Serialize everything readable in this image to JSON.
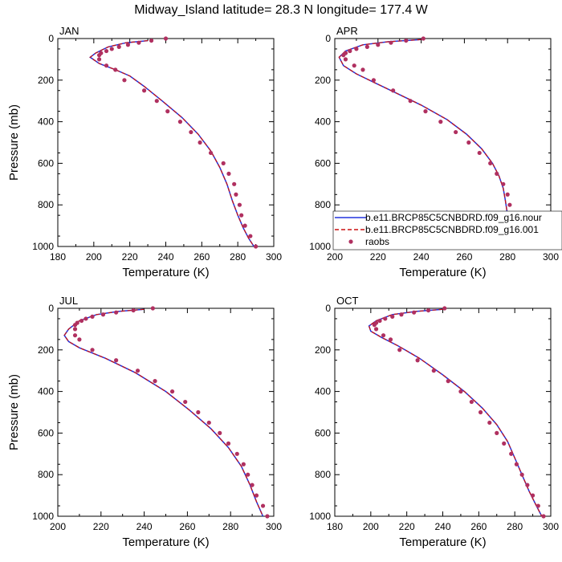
{
  "title": "Midway_Island  latitude= 28.3 N longitude= 177.4 W",
  "legend_entries": [
    {
      "label": "b.e11.BRCP85C5CNBDRD.f09_g16.nour",
      "style": "solid",
      "color": "#2233dd"
    },
    {
      "label": "b.e11.BRCP85C5CNBDRD.f09_g16.001",
      "style": "dashed",
      "color": "#cc1111"
    },
    {
      "label": "raobs",
      "style": "marker",
      "color": "#b03060"
    }
  ],
  "chart_data": [
    {
      "type": "line",
      "panel": "JAN",
      "xlabel": "Temperature (K)",
      "ylabel": "Pressure (mb)",
      "xlim": [
        180,
        300
      ],
      "xticks": [
        180,
        200,
        220,
        240,
        260,
        280,
        300
      ],
      "ylim": [
        1000,
        0
      ],
      "yticks": [
        0,
        200,
        400,
        600,
        800,
        1000
      ],
      "series": [
        {
          "name": "b.e11.BRCP85C5CNBDRD.f09_g16.nour",
          "x": [
            230,
            218,
            208,
            201,
            198,
            203,
            212,
            220,
            228,
            238,
            249,
            258,
            265,
            270,
            274,
            277,
            280,
            283,
            286,
            289
          ],
          "y": [
            10,
            20,
            40,
            70,
            90,
            120,
            150,
            180,
            230,
            300,
            380,
            460,
            540,
            620,
            700,
            780,
            850,
            910,
            960,
            1000
          ]
        },
        {
          "name": "b.e11.BRCP85C5CNBDRD.f09_g16.001",
          "x": [
            230,
            218,
            208,
            201,
            198,
            203,
            212,
            220,
            228,
            238,
            249,
            258,
            265,
            270,
            274,
            277,
            280,
            283,
            286,
            289
          ],
          "y": [
            10,
            20,
            40,
            70,
            90,
            120,
            150,
            180,
            230,
            300,
            380,
            460,
            540,
            620,
            700,
            780,
            850,
            910,
            960,
            1000
          ]
        },
        {
          "name": "raobs",
          "x": [
            240,
            232,
            225,
            219,
            214,
            210,
            207,
            204,
            203,
            203,
            207,
            212,
            217,
            228,
            235,
            241,
            248,
            254,
            259,
            265,
            272,
            275,
            278,
            279,
            281,
            282,
            284,
            287,
            290
          ],
          "y": [
            0,
            10,
            20,
            30,
            40,
            50,
            60,
            70,
            80,
            100,
            130,
            150,
            200,
            250,
            300,
            350,
            400,
            450,
            500,
            550,
            600,
            650,
            700,
            750,
            800,
            850,
            900,
            950,
            1000
          ]
        }
      ]
    },
    {
      "type": "line",
      "panel": "APR",
      "xlabel": "Temperature (K)",
      "ylabel": "",
      "xlim": [
        200,
        300
      ],
      "xticks": [
        200,
        220,
        240,
        260,
        280,
        300
      ],
      "ylim": [
        1000,
        0
      ],
      "yticks": [
        0,
        200,
        400,
        600,
        800,
        1000
      ],
      "series": [
        {
          "name": "b.e11.BRCP85C5CNBDRD.f09_g16.nour",
          "x": [
            240,
            225,
            213,
            205,
            202,
            204,
            210,
            218,
            228,
            240,
            252,
            261,
            268,
            273,
            276,
            278,
            279,
            280,
            283,
            286,
            289
          ],
          "y": [
            5,
            15,
            30,
            60,
            90,
            130,
            170,
            210,
            260,
            320,
            390,
            460,
            530,
            600,
            660,
            720,
            780,
            850,
            910,
            960,
            1000
          ]
        },
        {
          "name": "b.e11.BRCP85C5CNBDRD.f09_g16.001",
          "x": [
            240,
            225,
            213,
            205,
            202,
            204,
            210,
            218,
            228,
            240,
            252,
            261,
            268,
            273,
            276,
            278,
            279,
            280,
            283,
            286,
            289
          ],
          "y": [
            5,
            15,
            30,
            60,
            90,
            130,
            170,
            210,
            260,
            320,
            390,
            460,
            530,
            600,
            660,
            720,
            780,
            850,
            910,
            960,
            1000
          ]
        },
        {
          "name": "raobs",
          "x": [
            241,
            233,
            226,
            220,
            215,
            210,
            207,
            205,
            204,
            205,
            209,
            213,
            218,
            227,
            235,
            242,
            249,
            256,
            262,
            267,
            272,
            275,
            278,
            280,
            281,
            282,
            283,
            286,
            290
          ],
          "y": [
            0,
            10,
            20,
            30,
            40,
            50,
            60,
            70,
            80,
            100,
            130,
            150,
            200,
            250,
            300,
            350,
            400,
            450,
            500,
            550,
            600,
            650,
            700,
            750,
            800,
            850,
            900,
            950,
            1000
          ]
        }
      ]
    },
    {
      "type": "line",
      "panel": "JUL",
      "xlabel": "Temperature (K)",
      "ylabel": "Pressure (mb)",
      "xlim": [
        200,
        300
      ],
      "xticks": [
        200,
        220,
        240,
        260,
        280,
        300
      ],
      "ylim": [
        1000,
        0
      ],
      "yticks": [
        0,
        200,
        400,
        600,
        800,
        1000
      ],
      "series": [
        {
          "name": "b.e11.BRCP85C5CNBDRD.f09_g16.nour",
          "x": [
            240,
            228,
            218,
            210,
            205,
            203,
            205,
            210,
            222,
            236,
            250,
            261,
            271,
            279,
            285,
            289,
            292,
            295
          ],
          "y": [
            5,
            15,
            30,
            60,
            100,
            130,
            160,
            190,
            240,
            310,
            400,
            490,
            580,
            670,
            760,
            850,
            930,
            1000
          ]
        },
        {
          "name": "b.e11.BRCP85C5CNBDRD.f09_g16.001",
          "x": [
            240,
            228,
            218,
            210,
            205,
            203,
            205,
            210,
            222,
            236,
            250,
            261,
            271,
            279,
            285,
            289,
            292,
            295
          ],
          "y": [
            5,
            15,
            30,
            60,
            100,
            130,
            160,
            190,
            240,
            310,
            400,
            490,
            580,
            670,
            760,
            850,
            930,
            1000
          ]
        },
        {
          "name": "raobs",
          "x": [
            244,
            235,
            227,
            221,
            216,
            213,
            211,
            209,
            208,
            208,
            208,
            210,
            216,
            227,
            237,
            245,
            253,
            259,
            265,
            270,
            275,
            279,
            283,
            286,
            288,
            290,
            292,
            295,
            297
          ],
          "y": [
            0,
            10,
            20,
            30,
            40,
            50,
            60,
            70,
            80,
            100,
            130,
            150,
            200,
            250,
            300,
            350,
            400,
            450,
            500,
            550,
            600,
            650,
            700,
            750,
            800,
            850,
            900,
            950,
            1000
          ]
        }
      ]
    },
    {
      "type": "line",
      "panel": "OCT",
      "xlabel": "Temperature (K)",
      "ylabel": "",
      "xlim": [
        180,
        300
      ],
      "xticks": [
        180,
        200,
        220,
        240,
        260,
        280,
        300
      ],
      "ylim": [
        1000,
        0
      ],
      "yticks": [
        0,
        200,
        400,
        600,
        800,
        1000
      ],
      "series": [
        {
          "name": "b.e11.BRCP85C5CNBDRD.f09_g16.nour",
          "x": [
            240,
            225,
            212,
            203,
            199,
            200,
            206,
            215,
            227,
            240,
            252,
            262,
            270,
            276,
            280,
            284,
            288,
            292,
            295
          ],
          "y": [
            5,
            15,
            30,
            60,
            85,
            110,
            140,
            180,
            240,
            320,
            400,
            480,
            560,
            640,
            720,
            800,
            880,
            950,
            1000
          ]
        },
        {
          "name": "b.e11.BRCP85C5CNBDRD.f09_g16.001",
          "x": [
            240,
            225,
            212,
            203,
            199,
            200,
            206,
            215,
            227,
            240,
            252,
            262,
            270,
            276,
            280,
            284,
            288,
            292,
            295
          ],
          "y": [
            5,
            15,
            30,
            60,
            85,
            110,
            140,
            180,
            240,
            320,
            400,
            480,
            560,
            640,
            720,
            800,
            880,
            950,
            1000
          ]
        },
        {
          "name": "raobs",
          "x": [
            241,
            232,
            224,
            217,
            212,
            208,
            205,
            203,
            202,
            203,
            207,
            211,
            216,
            226,
            235,
            243,
            250,
            256,
            261,
            266,
            270,
            274,
            278,
            281,
            284,
            287,
            290,
            293,
            296
          ],
          "y": [
            0,
            10,
            20,
            30,
            40,
            50,
            60,
            70,
            80,
            100,
            130,
            150,
            200,
            250,
            300,
            350,
            400,
            450,
            500,
            550,
            600,
            650,
            700,
            750,
            800,
            850,
            900,
            950,
            1000
          ]
        }
      ]
    }
  ]
}
